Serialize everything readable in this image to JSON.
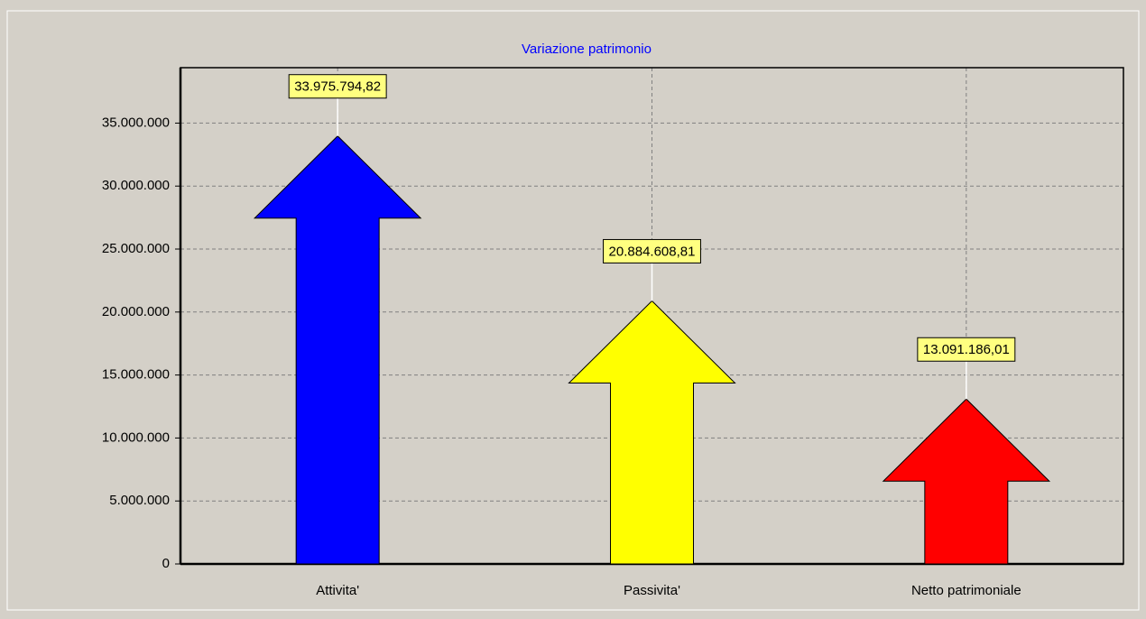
{
  "chart_data": {
    "type": "arrow-bar",
    "title": "Variazione patrimonio",
    "categories": [
      "Attivita'",
      "Passivita'",
      "Netto patrimoniale"
    ],
    "series": [
      {
        "name": null,
        "colors": [
          "#0000ff",
          "#ffff00",
          "#ff0000"
        ],
        "values": [
          33975794.82,
          20884608.81,
          13091186.01
        ],
        "value_labels": [
          "33.975.794,82",
          "20.884.608,81",
          "13.091.186,01"
        ]
      }
    ],
    "ylim": [
      0,
      39400000
    ],
    "yticks": [
      {
        "value": 0,
        "label": "0"
      },
      {
        "value": 5000000,
        "label": "5.000.000"
      },
      {
        "value": 10000000,
        "label": "10.000.000"
      },
      {
        "value": 15000000,
        "label": "15.000.000"
      },
      {
        "value": 20000000,
        "label": "20.000.000"
      },
      {
        "value": 25000000,
        "label": "25.000.000"
      },
      {
        "value": 30000000,
        "label": "30.000.000"
      },
      {
        "value": 35000000,
        "label": "35.000.000"
      }
    ],
    "grid": true
  }
}
